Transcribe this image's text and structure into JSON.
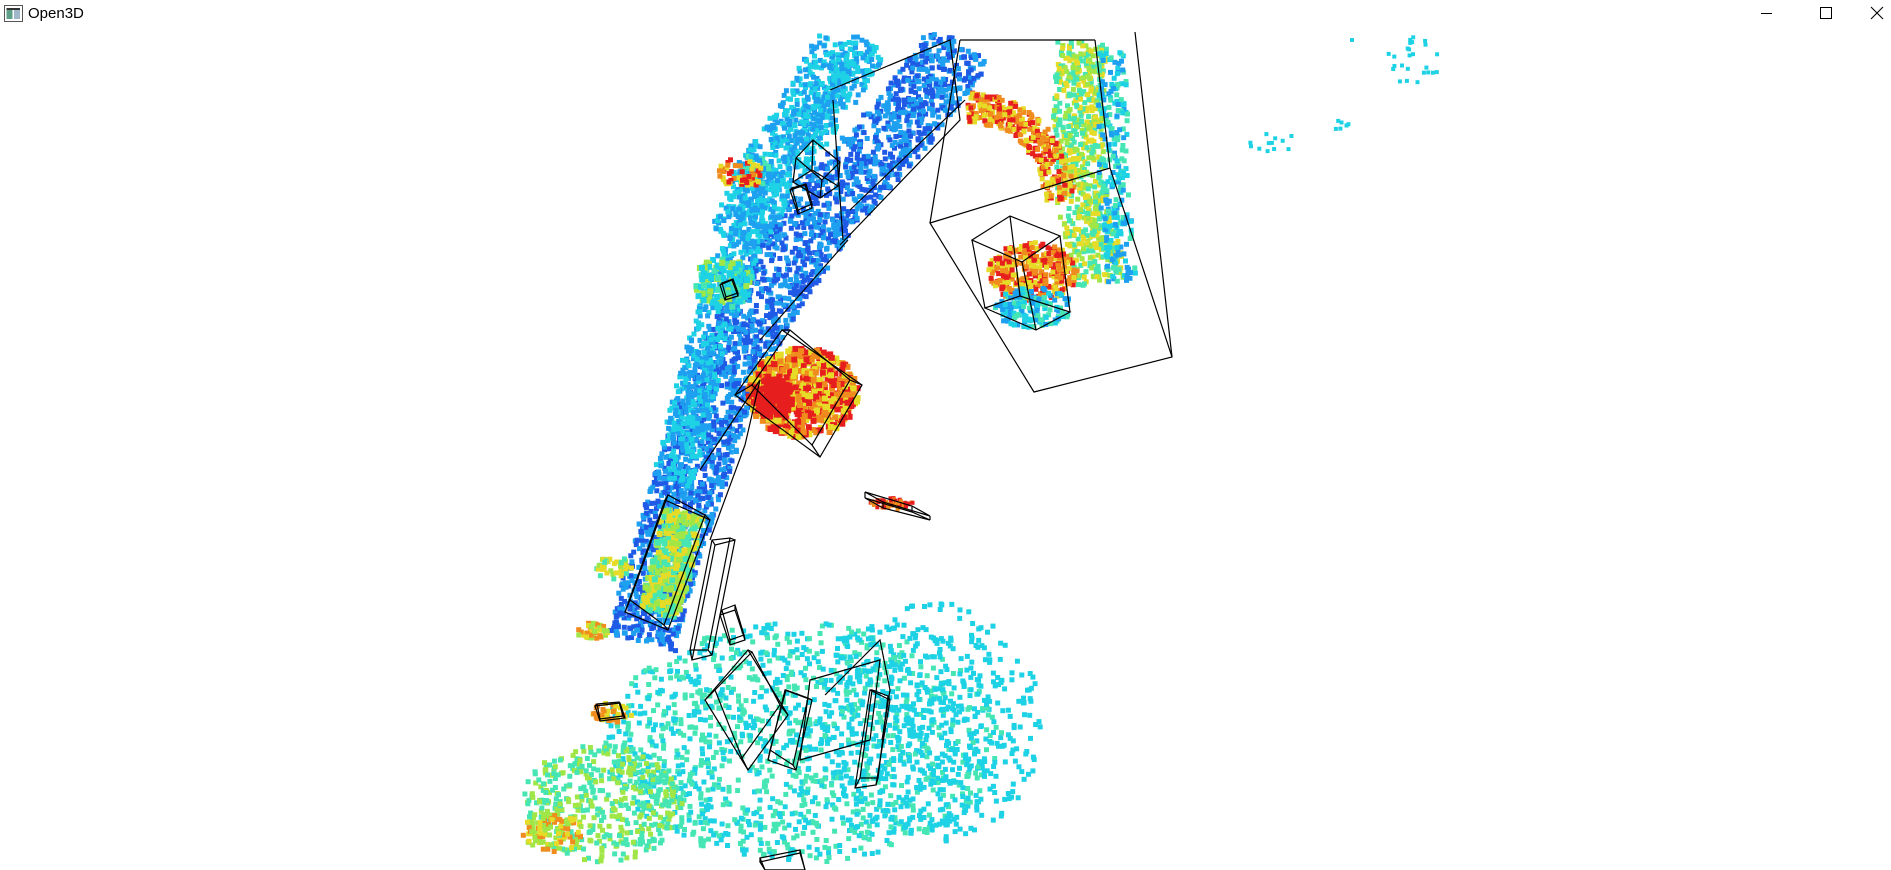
{
  "window": {
    "title": "Open3D",
    "icon": "open3d-app-icon",
    "controls": {
      "minimize_icon": "minimize-icon",
      "maximize_icon": "maximize-icon",
      "close_icon": "close-icon"
    }
  },
  "viewport": {
    "content": "point-cloud",
    "background": "#ffffff",
    "box_color": "#000000",
    "colormap": [
      "#1e5ae6",
      "#1ea0f0",
      "#1ed2e6",
      "#46e6b4",
      "#a0e646",
      "#e6dc28",
      "#f08c1e",
      "#e61e1e"
    ]
  }
}
